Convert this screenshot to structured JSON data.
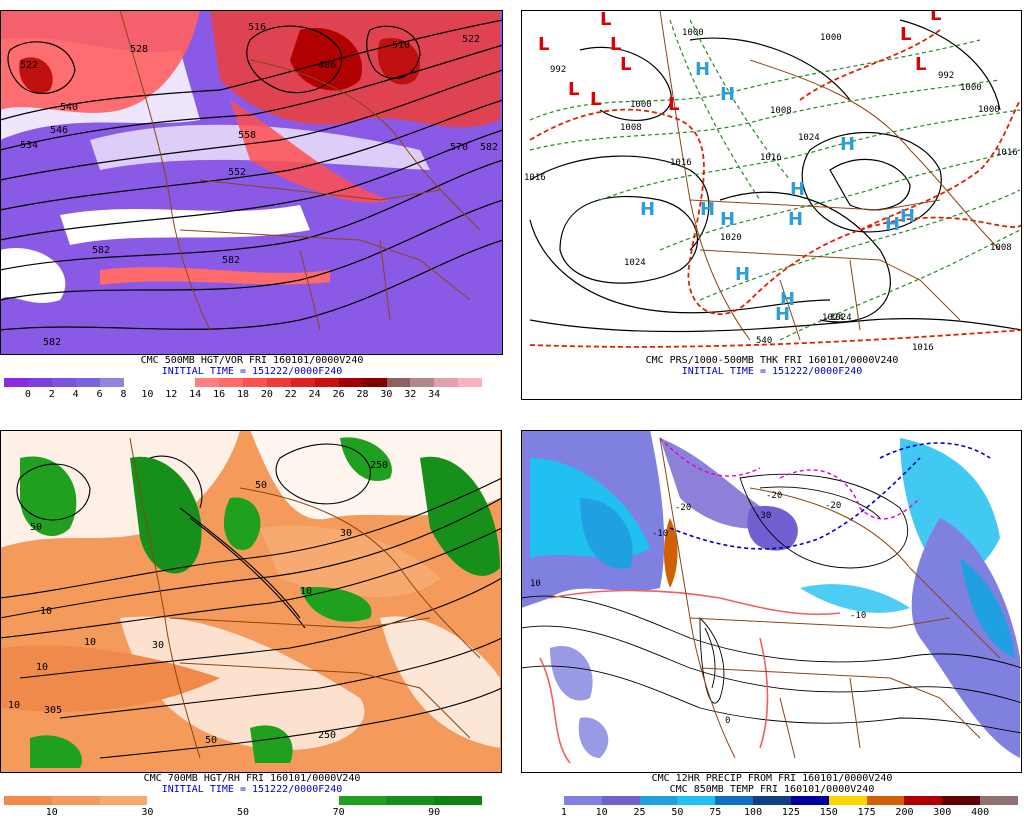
{
  "panels": [
    {
      "caption1": "CMC 500MB HGT/VOR FRI 160101/0000V240",
      "caption2": "INITIAL TIME = 151222/0000F240",
      "scale_colors": [
        "#8a2be2",
        "#7b3fe0",
        "#7d52e0",
        "#7a63de",
        "#8e85dd",
        "#ffffff",
        "#ffffff",
        "#ffffff",
        "#ff8080",
        "#ff6a6a",
        "#ff5050",
        "#f03a3a",
        "#e02020",
        "#c81010",
        "#a00000",
        "#800000",
        "#906060",
        "#b08888",
        "#e0a0b0",
        "#ffb0c0"
      ],
      "scale_labels": [
        "0",
        "2",
        "4",
        "6",
        "8",
        "10",
        "12",
        "14",
        "16",
        "18",
        "20",
        "22",
        "24",
        "26",
        "28",
        "30",
        "32",
        "34"
      ],
      "contour_labels": [
        "582",
        "582",
        "582",
        "546",
        "534",
        "558",
        "552",
        "570",
        "582",
        "540",
        "522",
        "528",
        "516",
        "522",
        "486",
        "510"
      ]
    },
    {
      "caption1": "CMC PRS/1000-500MB THK FRI 160101/0000V240",
      "caption2": "INITIAL TIME = 151222/0000F240",
      "isobar_labels": [
        "1016",
        "1024",
        "1024",
        "1016",
        "1008",
        "1000",
        "992",
        "1000",
        "1008",
        "1016",
        "1024",
        "1024",
        "1016",
        "540",
        "1000",
        "1000",
        "992",
        "1000",
        "1008",
        "1020",
        "1016"
      ]
    },
    {
      "caption1": "CMC 700MB HGT/RH FRI 160101/0000V240",
      "caption2": "INITIAL TIME = 151222/0000F240",
      "scale_colors": [
        "#f08a4b",
        "#f49b5c",
        "#f6aa70",
        "#ffffff",
        "#ffffff",
        "#ffffff",
        "#ffffff",
        "#1fa01f",
        "#16901a",
        "#0f8014"
      ],
      "scale_labels": [
        "10",
        "30",
        "50",
        "70",
        "90"
      ],
      "contour_labels": [
        "10",
        "10",
        "10",
        "50",
        "30",
        "10",
        "305",
        "50",
        "10",
        "50",
        "30",
        "250",
        "250"
      ]
    },
    {
      "caption1": "CMC 12HR PRECIP FROM FRI 160101/0000V240",
      "caption2": "CMC 850MB TEMP FRI 160101/0000V240",
      "scale_colors": [
        "#ffffff",
        "#8080e0",
        "#7060d0",
        "#20a0e0",
        "#20c0f0",
        "#1070c0",
        "#104080",
        "#0000a0",
        "#ffd700",
        "#d06000",
        "#b00000",
        "#600000",
        "#907070"
      ],
      "scale_labels": [
        "1",
        "10",
        "25",
        "50",
        "75",
        "100",
        "125",
        "150",
        "175",
        "200",
        "300",
        "400"
      ],
      "contour_labels": [
        "-20",
        "-30",
        "-20",
        "-10",
        "0",
        "10",
        "-10",
        "-20"
      ]
    }
  ]
}
